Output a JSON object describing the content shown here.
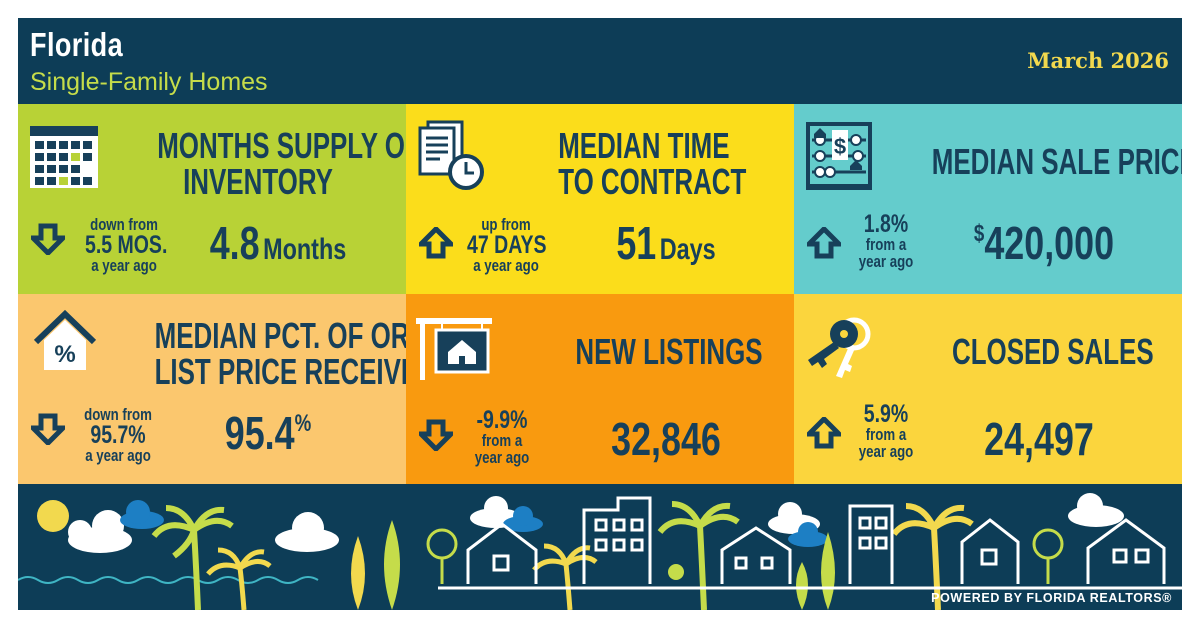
{
  "header": {
    "title": "Florida",
    "subtitle": "Single-Family Homes",
    "date": "March 2026"
  },
  "tiles": [
    {
      "title_l1": "MONTHS SUPPLY OF",
      "title_l2": "INVENTORY",
      "direction": "down",
      "change_l1": "down from",
      "change_l2": "5.5 MOS.",
      "change_l3": "a year ago",
      "value": "4.8",
      "unit": "Months",
      "color": "#b8d236",
      "icon": "calendar-icon"
    },
    {
      "title_l1": "MEDIAN TIME",
      "title_l2": "TO CONTRACT",
      "direction": "up",
      "change_l1": "up from",
      "change_l2": "47 DAYS",
      "change_l3": "a year ago",
      "value": "51",
      "unit": "Days",
      "color": "#fbdd1b",
      "icon": "document-clock-icon"
    },
    {
      "title_l1": "MEDIAN SALE PRICE",
      "direction": "up",
      "change_l1": "1.8%",
      "change_l2": "from a",
      "change_l3": "year ago",
      "value_prefix": "$",
      "value": "420,000",
      "color": "#64cccc",
      "icon": "abacus-dollar-icon"
    },
    {
      "title_l1": "MEDIAN PCT. OF ORIG.",
      "title_l2": "LIST PRICE RECEIVED",
      "direction": "down",
      "change_l1": "down from",
      "change_l2": "95.7%",
      "change_l3": "a year ago",
      "value": "95.4",
      "value_suffix": "%",
      "color": "#fbc76e",
      "icon": "house-percent-icon",
      "icon_text": "%"
    },
    {
      "title_l1": "NEW LISTINGS",
      "direction": "down",
      "change_l1": "-9.9%",
      "change_l2": "from a",
      "change_l3": "year ago",
      "value": "32,846",
      "color": "#f99a0f",
      "icon": "for-sale-sign-icon"
    },
    {
      "title_l1": "CLOSED SALES",
      "direction": "up",
      "change_l1": "5.9%",
      "change_l2": "from a",
      "change_l3": "year ago",
      "value": "24,497",
      "color": "#fbd53d",
      "icon": "keys-icon"
    }
  ],
  "footer": {
    "powered_by": "POWERED BY FLORIDA REALTORS®",
    "scene": "florida-skyline-illustration"
  },
  "colors": {
    "navy": "#0d3d57",
    "text_dark": "#17405a",
    "accent_green": "#c5dc4a",
    "accent_gold": "#f2d94e"
  }
}
